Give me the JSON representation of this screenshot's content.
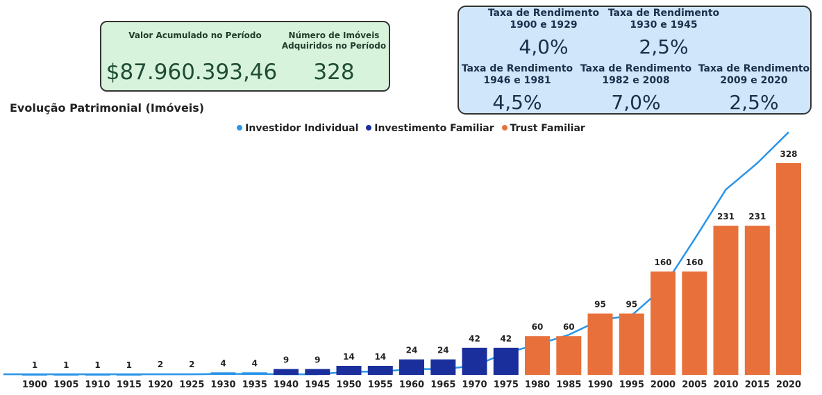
{
  "kpi_card": {
    "accumulated_label": "Valor Acumulado no Período",
    "accumulated_value": "$87.960.393,46",
    "properties_label_line1": "Número de Imóveis",
    "properties_label_line2": "Adquiridos no Período",
    "properties_value": "328"
  },
  "rates_card": {
    "items": [
      {
        "line1": "Taxa de Rendimento",
        "line2": "1900 e 1929",
        "value": "4,0%"
      },
      {
        "line1": "Taxa de Rendimento",
        "line2": "1930 e 1945",
        "value": "2,5%"
      },
      {
        "line1": "Taxa de Rendimento",
        "line2": "1946 e 1981",
        "value": "4,5%"
      },
      {
        "line1": "Taxa de Rendimento",
        "line2": "1982 e 2008",
        "value": "7,0%"
      },
      {
        "line1": "Taxa de Rendimento",
        "line2": "2009 e 2020",
        "value": "2,5%"
      }
    ]
  },
  "colors": {
    "individual": "#2a94e8",
    "familiar": "#1a2e9c",
    "trust": "#e8703a",
    "kpi_bg": "#d8f3dc",
    "rates_bg": "#cfe6fb"
  },
  "chart_data": {
    "type": "bar",
    "title": "Evolução Patrimonial (Imóveis)",
    "legend": [
      {
        "name": "Investidor Individual",
        "color": "#2a94e8"
      },
      {
        "name": "Investimento Familiar",
        "color": "#1a2e9c"
      },
      {
        "name": "Trust Familiar",
        "color": "#e8703a"
      }
    ],
    "categories": [
      "1900",
      "1905",
      "1910",
      "1915",
      "1920",
      "1925",
      "1930",
      "1935",
      "1940",
      "1945",
      "1950",
      "1955",
      "1960",
      "1965",
      "1970",
      "1975",
      "1980",
      "1985",
      "1990",
      "1995",
      "2000",
      "2005",
      "2010",
      "2015",
      "2020"
    ],
    "values": [
      1,
      1,
      1,
      1,
      2,
      2,
      4,
      4,
      9,
      9,
      14,
      14,
      24,
      24,
      42,
      42,
      60,
      60,
      95,
      95,
      160,
      160,
      231,
      231,
      328
    ],
    "bar_series": [
      "Investidor Individual",
      "Investidor Individual",
      "Investidor Individual",
      "Investidor Individual",
      "Investidor Individual",
      "Investidor Individual",
      "Investidor Individual",
      "Investidor Individual",
      "Investimento Familiar",
      "Investimento Familiar",
      "Investimento Familiar",
      "Investimento Familiar",
      "Investimento Familiar",
      "Investimento Familiar",
      "Investimento Familiar",
      "Investimento Familiar",
      "Trust Familiar",
      "Trust Familiar",
      "Trust Familiar",
      "Trust Familiar",
      "Trust Familiar",
      "Trust Familiar",
      "Trust Familiar",
      "Trust Familiar",
      "Trust Familiar"
    ],
    "line_series": {
      "name": "Investidor Individual",
      "x": [
        1895,
        1900,
        1905,
        1910,
        1915,
        1920,
        1925,
        1930,
        1935,
        1940,
        1945,
        1950,
        1955,
        1960,
        1965,
        1970,
        1975,
        1980,
        1985,
        1990,
        1995,
        2000,
        2005,
        2010,
        2015,
        2020
      ],
      "values": [
        1,
        1,
        1,
        1,
        1,
        1,
        1,
        1.5,
        1.5,
        1,
        1,
        5,
        5,
        9,
        9,
        14,
        34,
        47,
        62,
        85,
        92,
        135,
        210,
        287,
        328,
        376
      ]
    },
    "ylim": [
      0,
      370
    ],
    "xlabel": "",
    "ylabel": ""
  }
}
